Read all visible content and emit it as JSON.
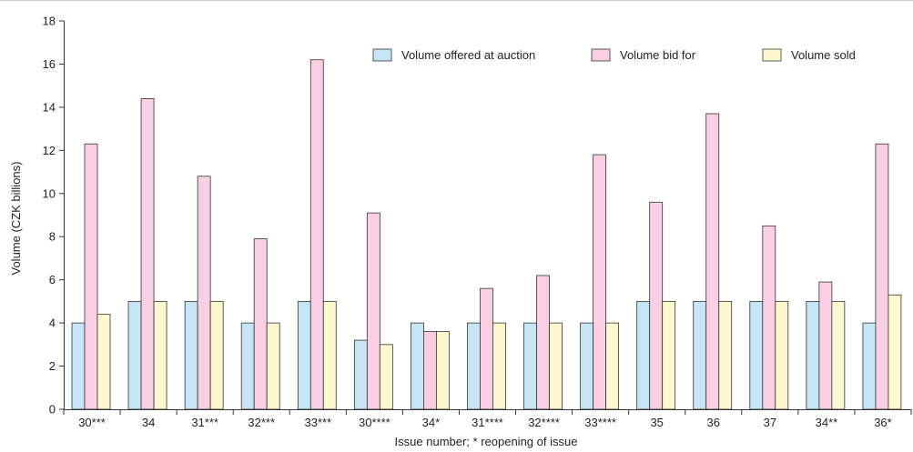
{
  "colors": {
    "offered": "#c6e6f6",
    "bid": "#f9cfe4",
    "sold": "#fdf8cf",
    "stroke": "#333333",
    "axis": "#333333",
    "border": "#cccccc"
  },
  "chart_data": {
    "type": "bar",
    "title": "",
    "xlabel": "Issue number; * reopening of issue",
    "ylabel": "Volume (CZK billions)",
    "ylim": [
      0,
      18
    ],
    "yticks": [
      0,
      2,
      4,
      6,
      8,
      10,
      12,
      14,
      16,
      18
    ],
    "grid": false,
    "legend_position": "top-right",
    "categories": [
      "30***",
      "34",
      "31***",
      "32***",
      "33***",
      "30****",
      "34*",
      "31****",
      "32****",
      "33****",
      "35",
      "36",
      "37",
      "34**",
      "36*"
    ],
    "series": [
      {
        "name": "Volume offered at auction",
        "color_key": "offered",
        "values": [
          4,
          5,
          5,
          4,
          5,
          3.2,
          4,
          4,
          4,
          4,
          5,
          5,
          5,
          5,
          4
        ]
      },
      {
        "name": "Volume bid for",
        "color_key": "bid",
        "values": [
          12.3,
          14.4,
          10.8,
          7.9,
          16.2,
          9.1,
          3.6,
          5.6,
          6.2,
          11.8,
          9.6,
          13.7,
          8.5,
          5.9,
          12.3
        ]
      },
      {
        "name": "Volume sold",
        "color_key": "sold",
        "values": [
          4.4,
          5,
          5,
          4,
          5,
          3,
          3.6,
          4,
          4,
          4,
          5,
          5,
          5,
          5,
          5.3
        ]
      }
    ]
  }
}
